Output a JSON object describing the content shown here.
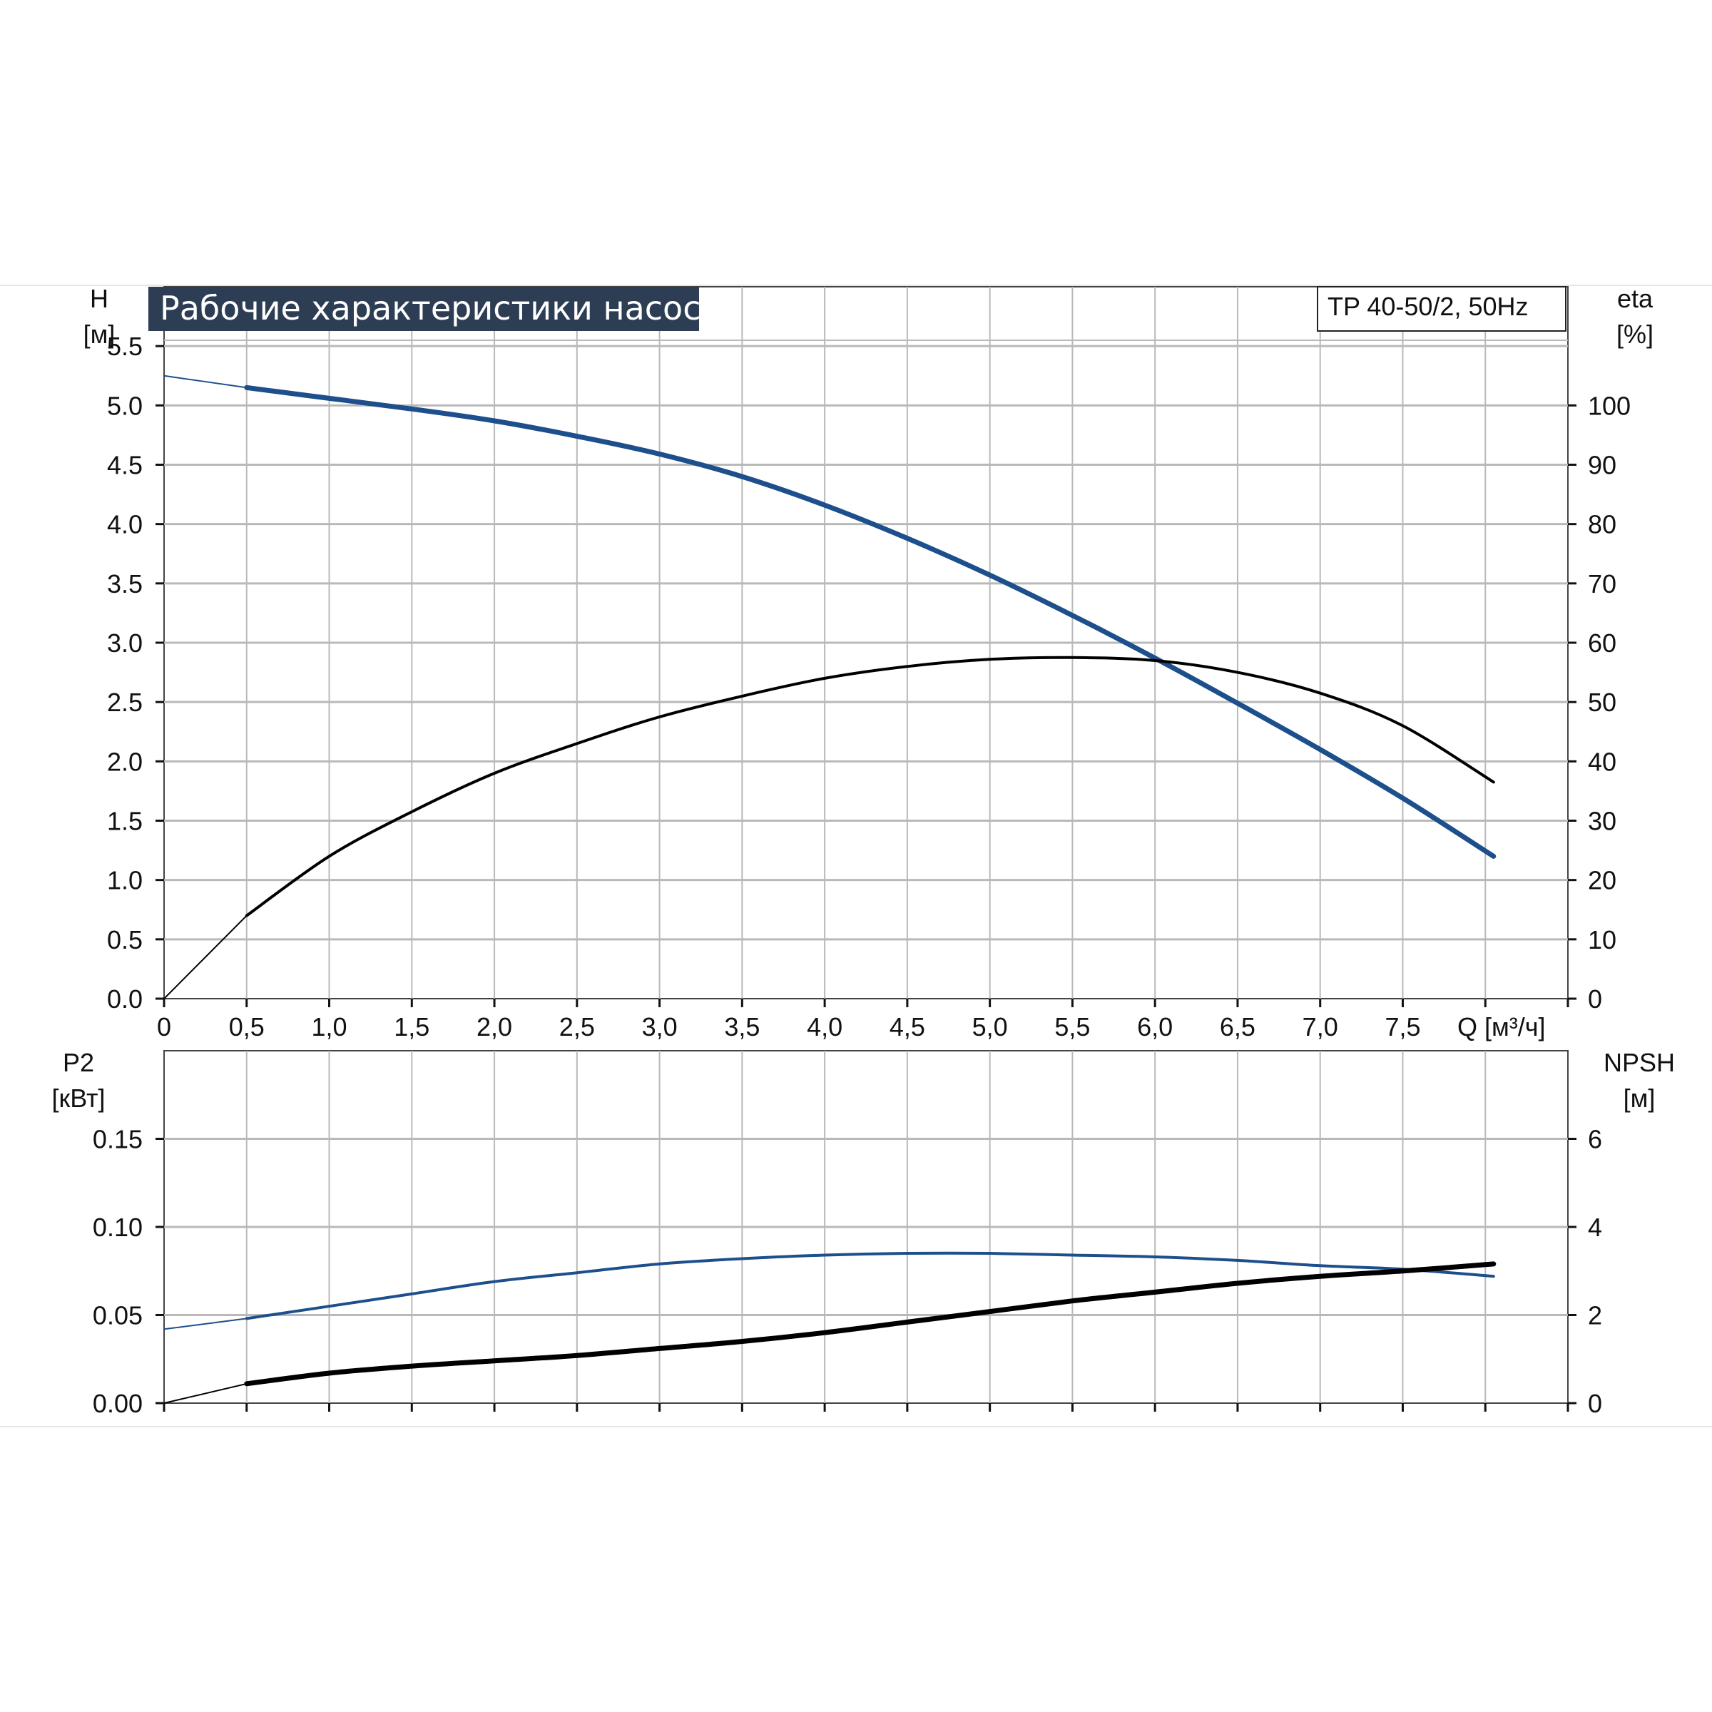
{
  "title": "Рабочие характеристики насоса",
  "model": "TP 40-50/2, 50Hz",
  "colors": {
    "blue": "#1d4f8c",
    "black": "#000000",
    "grid": "#b9b9b9",
    "title_bg": "#2d3e54"
  },
  "chart_data": [
    {
      "type": "line",
      "panel": "top",
      "xlabel": "Q [м³/ч]",
      "x_ticks": [
        "0",
        "0,5",
        "1,0",
        "1,5",
        "2,0",
        "2,5",
        "3,0",
        "3,5",
        "4,0",
        "4,5",
        "5,0",
        "5,5",
        "6,0",
        "6,5",
        "7,0",
        "7,5"
      ],
      "xlim": [
        0,
        8.5
      ],
      "y_left": {
        "label": "H",
        "unit": "[м]",
        "lim": [
          0,
          6.0
        ],
        "ticks": [
          "0.0",
          "0.5",
          "1.0",
          "1.5",
          "2.0",
          "2.5",
          "3.0",
          "3.5",
          "4.0",
          "4.5",
          "5.0",
          "5.5"
        ]
      },
      "y_right": {
        "label": "eta",
        "unit": "[%]",
        "lim": [
          0,
          120
        ],
        "ticks": [
          "0",
          "10",
          "20",
          "30",
          "40",
          "50",
          "60",
          "70",
          "80",
          "90",
          "100"
        ]
      },
      "grid": true,
      "series": [
        {
          "axis": "left",
          "color": "blue",
          "x": [
            0,
            0.5,
            1.0,
            1.5,
            2.0,
            2.5,
            3.0,
            3.5,
            4.0,
            4.5,
            5.0,
            5.5,
            6.0,
            6.5,
            7.0,
            7.5,
            8.05
          ],
          "y": [
            5.25,
            5.15,
            5.06,
            4.97,
            4.87,
            4.74,
            4.59,
            4.4,
            4.16,
            3.88,
            3.57,
            3.23,
            2.87,
            2.49,
            2.1,
            1.69,
            1.2
          ]
        },
        {
          "axis": "right",
          "color": "black",
          "x": [
            0,
            0.5,
            1.0,
            1.5,
            2.0,
            2.5,
            3.0,
            3.5,
            4.0,
            4.5,
            5.0,
            5.5,
            6.0,
            6.5,
            7.0,
            7.5,
            8.05
          ],
          "y": [
            0,
            14,
            24,
            31.5,
            38,
            43,
            47.5,
            51,
            54,
            56,
            57.2,
            57.5,
            57,
            55,
            51.5,
            46,
            36.5
          ]
        }
      ]
    },
    {
      "type": "line",
      "panel": "bottom",
      "xlim": [
        0,
        8.5
      ],
      "y_left": {
        "label": "P2",
        "unit": "[кВт]",
        "lim": [
          0,
          0.2
        ],
        "ticks": [
          "0.00",
          "0.05",
          "0.10",
          "0.15"
        ]
      },
      "y_right": {
        "label": "NPSH",
        "unit": "[м]",
        "lim": [
          0,
          8
        ],
        "ticks": [
          "0",
          "2",
          "4",
          "6"
        ]
      },
      "grid": true,
      "series": [
        {
          "axis": "left",
          "color": "blue",
          "x": [
            0,
            0.5,
            1.0,
            1.5,
            2.0,
            2.5,
            3.0,
            3.5,
            4.0,
            4.5,
            5.0,
            5.5,
            6.0,
            6.5,
            7.0,
            7.5,
            8.05
          ],
          "y": [
            0.042,
            0.048,
            0.055,
            0.062,
            0.069,
            0.074,
            0.079,
            0.082,
            0.084,
            0.085,
            0.085,
            0.084,
            0.083,
            0.081,
            0.078,
            0.076,
            0.072
          ]
        },
        {
          "axis": "left",
          "color": "black",
          "x": [
            0,
            0.5,
            1.0,
            1.5,
            2.0,
            2.5,
            3.0,
            3.5,
            4.0,
            4.5,
            5.0,
            5.5,
            6.0,
            6.5,
            7.0,
            7.5,
            8.05
          ],
          "y": [
            0.0,
            0.011,
            0.017,
            0.021,
            0.024,
            0.027,
            0.031,
            0.035,
            0.04,
            0.046,
            0.052,
            0.058,
            0.063,
            0.068,
            0.072,
            0.075,
            0.079
          ]
        }
      ]
    }
  ]
}
